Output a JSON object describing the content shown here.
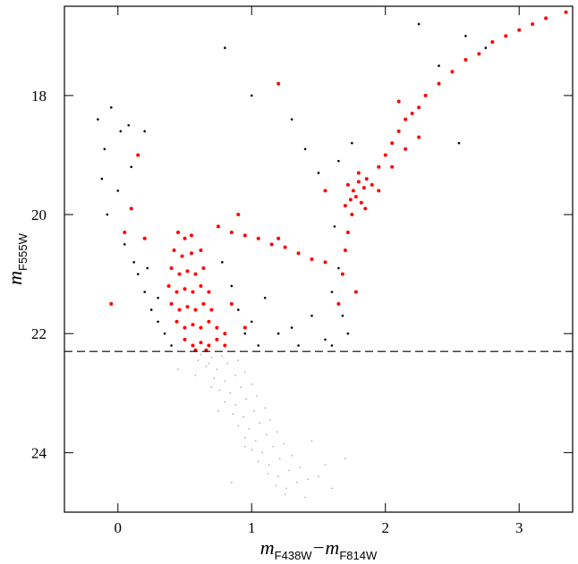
{
  "chart_data": {
    "type": "scatter",
    "xlabel": [
      {
        "text": "m"
      },
      {
        "text": "F438W",
        "sub": true
      },
      {
        "text": "−m"
      },
      {
        "text": "F814W",
        "sub": true
      }
    ],
    "ylabel": [
      {
        "text": "m"
      },
      {
        "text": "F555W",
        "sub": true
      }
    ],
    "xlim": [
      -0.4,
      3.4
    ],
    "xticks": [
      0,
      1,
      2,
      3
    ],
    "ylim": [
      16.5,
      25
    ],
    "yticks": [
      18,
      20,
      22,
      24
    ],
    "y_inverted": true,
    "hline": 22.3,
    "series": [
      {
        "color": "#b3b3b3",
        "marker_size": 0.9,
        "x": [
          0.62,
          0.7,
          0.78,
          0.66,
          0.74,
          0.82,
          0.9,
          0.72,
          0.8,
          0.88,
          0.95,
          0.76,
          0.84,
          0.92,
          1.0,
          0.8,
          0.88,
          0.96,
          1.04,
          0.86,
          0.94,
          1.02,
          1.1,
          0.9,
          0.98,
          1.06,
          1.14,
          0.95,
          1.03,
          1.11,
          1.19,
          1.0,
          1.08,
          1.16,
          1.24,
          1.05,
          1.13,
          1.21,
          1.3,
          1.12,
          1.2,
          1.28,
          1.36,
          1.18,
          1.26,
          1.34,
          1.42,
          1.5,
          0.6,
          0.68,
          0.58,
          0.75,
          1.45,
          1.55,
          0.7,
          0.85,
          1.25,
          1.4,
          0.95,
          1.6,
          0.45,
          1.7
        ],
        "y": [
          22.35,
          22.4,
          22.38,
          22.55,
          22.6,
          22.5,
          22.45,
          22.75,
          22.8,
          22.7,
          22.65,
          22.95,
          23.0,
          22.9,
          22.85,
          23.15,
          23.2,
          23.1,
          23.05,
          23.35,
          23.4,
          23.3,
          23.25,
          23.55,
          23.6,
          23.5,
          23.45,
          23.75,
          23.8,
          23.7,
          23.65,
          23.95,
          24.0,
          23.9,
          23.85,
          24.15,
          24.2,
          24.1,
          24.05,
          24.35,
          24.4,
          24.3,
          24.25,
          24.55,
          24.6,
          24.5,
          24.45,
          24.4,
          22.45,
          22.5,
          22.7,
          23.3,
          23.8,
          24.2,
          22.9,
          24.5,
          24.7,
          24.75,
          23.9,
          24.6,
          22.6,
          24.1
        ]
      },
      {
        "color": "#000000",
        "marker_size": 1.3,
        "x": [
          -0.15,
          -0.1,
          -0.05,
          0.02,
          0.08,
          -0.12,
          0.0,
          0.1,
          0.2,
          -0.08,
          0.05,
          0.12,
          0.15,
          0.2,
          0.25,
          0.3,
          0.35,
          0.4,
          0.3,
          0.22,
          0.85,
          0.9,
          0.95,
          1.0,
          1.05,
          1.1,
          0.78,
          1.2,
          1.3,
          1.35,
          1.45,
          1.55,
          1.62,
          1.65,
          1.6,
          1.68,
          1.72,
          1.6,
          1.5,
          1.4,
          1.3,
          1.0,
          0.8,
          1.65,
          1.75,
          2.55,
          2.25,
          2.6,
          2.75,
          2.4,
          3.1
        ],
        "y": [
          18.4,
          18.9,
          18.2,
          18.6,
          18.5,
          19.4,
          19.6,
          19.2,
          18.6,
          20.0,
          20.5,
          20.8,
          21.0,
          21.3,
          21.6,
          21.8,
          22.0,
          22.2,
          21.4,
          20.9,
          21.2,
          21.6,
          22.0,
          21.8,
          22.2,
          21.4,
          20.8,
          22.0,
          21.9,
          22.2,
          21.7,
          22.1,
          20.2,
          20.9,
          21.3,
          21.7,
          22.0,
          22.2,
          19.3,
          18.9,
          18.4,
          18.0,
          17.2,
          19.1,
          18.8,
          18.8,
          16.8,
          17.0,
          17.2,
          17.5,
          16.8
        ]
      },
      {
        "color": "#ff0000",
        "marker_size": 2,
        "x": [
          0.45,
          0.5,
          0.55,
          0.42,
          0.48,
          0.55,
          0.62,
          0.4,
          0.46,
          0.52,
          0.58,
          0.64,
          0.38,
          0.44,
          0.5,
          0.56,
          0.62,
          0.68,
          0.4,
          0.46,
          0.52,
          0.58,
          0.64,
          0.7,
          0.44,
          0.5,
          0.56,
          0.62,
          0.68,
          0.74,
          0.5,
          0.56,
          0.62,
          0.68,
          0.74,
          0.8,
          0.58,
          0.66,
          0.75,
          0.85,
          0.95,
          1.05,
          1.15,
          1.25,
          1.35,
          1.45,
          1.55,
          0.9,
          1.2,
          0.15,
          0.1,
          0.05,
          -0.05,
          0.2,
          1.2,
          0.95,
          0.85,
          0.8,
          1.68,
          1.7,
          1.72,
          1.75,
          1.78,
          1.65,
          1.72,
          1.76,
          1.8,
          1.84,
          1.74,
          1.78,
          1.82,
          1.7,
          1.86,
          1.8,
          1.55,
          1.85,
          1.9,
          1.95,
          2.0,
          2.05,
          2.1,
          2.15,
          2.2,
          2.25,
          2.3,
          2.4,
          2.5,
          2.6,
          2.7,
          2.8,
          2.9,
          3.0,
          3.1,
          3.2,
          3.35,
          2.05,
          2.15,
          2.25,
          1.95,
          2.1
        ],
        "y": [
          20.3,
          20.4,
          20.35,
          20.6,
          20.7,
          20.65,
          20.6,
          20.9,
          21.0,
          20.95,
          21.0,
          20.9,
          21.2,
          21.3,
          21.25,
          21.3,
          21.2,
          21.3,
          21.5,
          21.6,
          21.55,
          21.6,
          21.5,
          21.6,
          21.8,
          21.9,
          21.85,
          21.9,
          21.8,
          21.9,
          22.1,
          22.2,
          22.15,
          22.2,
          22.1,
          22.2,
          22.28,
          22.28,
          20.2,
          20.3,
          20.35,
          20.4,
          20.5,
          20.55,
          20.65,
          20.75,
          20.8,
          20.0,
          20.4,
          19.0,
          19.9,
          20.3,
          21.5,
          20.4,
          17.8,
          21.9,
          21.5,
          22.0,
          21.0,
          20.6,
          20.3,
          20.0,
          21.3,
          21.5,
          19.5,
          19.6,
          19.45,
          19.55,
          19.75,
          19.7,
          19.8,
          19.85,
          19.4,
          19.3,
          19.6,
          19.9,
          19.5,
          19.2,
          19.0,
          18.8,
          18.6,
          18.4,
          18.3,
          18.2,
          18.0,
          17.8,
          17.6,
          17.4,
          17.3,
          17.1,
          17.0,
          16.9,
          16.8,
          16.7,
          16.6,
          19.2,
          18.9,
          18.7,
          19.6,
          18.1
        ]
      }
    ]
  }
}
